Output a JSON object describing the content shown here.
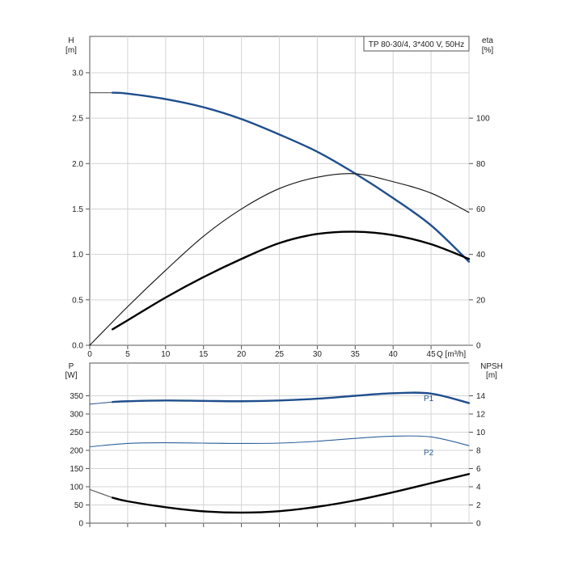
{
  "chart_data": [
    {
      "id": "head-efficiency",
      "type": "line",
      "legend_box": "TP 80-30/4, 3*400 V, 50Hz",
      "grid": true,
      "x_axis": {
        "label": "Q [m³/h]",
        "min": 0,
        "max": 50,
        "ticks": [
          0,
          5,
          10,
          15,
          20,
          25,
          30,
          35,
          40,
          45
        ],
        "tick_labels": [
          "0",
          "5",
          "10",
          "15",
          "20",
          "25",
          "30",
          "35",
          "40",
          "45"
        ]
      },
      "y_left": {
        "label_top": "H",
        "label_unit": "[m]",
        "min": 0,
        "max": 3.4,
        "ticks": [
          0,
          0.5,
          1.0,
          1.5,
          2.0,
          2.5,
          3.0
        ],
        "tick_labels": [
          "0.0",
          "0.5",
          "1.0",
          "1.5",
          "2.0",
          "2.5",
          "3.0"
        ]
      },
      "y_right": {
        "label_top": "eta",
        "label_unit": "[%]",
        "min": 0,
        "max": 136,
        "ticks": [
          0,
          20,
          40,
          60,
          80,
          100
        ],
        "tick_labels": [
          "0",
          "20",
          "40",
          "60",
          "80",
          "100"
        ]
      },
      "series": [
        {
          "key": "H_extension",
          "axis": "left",
          "color": "#555555",
          "style": "thin",
          "x": [
            0,
            3
          ],
          "y": [
            2.78,
            2.78
          ]
        },
        {
          "key": "H",
          "axis": "left",
          "color": "#1f4e8c",
          "style": "bold",
          "x": [
            3,
            5,
            10,
            15,
            20,
            25,
            30,
            35,
            40,
            45,
            50
          ],
          "y": [
            2.78,
            2.77,
            2.71,
            2.62,
            2.49,
            2.32,
            2.13,
            1.89,
            1.62,
            1.32,
            0.92
          ]
        },
        {
          "key": "eta_total",
          "axis": "right",
          "color": "#111111",
          "style": "thin",
          "x": [
            0,
            5,
            10,
            15,
            20,
            25,
            30,
            35,
            40,
            45,
            50
          ],
          "y": [
            0,
            17,
            33,
            48,
            60,
            69,
            74,
            75.5,
            72,
            67,
            58.5
          ]
        },
        {
          "key": "eta_hydraulic",
          "axis": "right",
          "color": "#000000",
          "style": "bold",
          "x": [
            3,
            5,
            10,
            15,
            20,
            25,
            30,
            35,
            40,
            45,
            50
          ],
          "y": [
            7,
            11,
            21,
            30,
            38,
            45,
            49,
            50,
            48.5,
            44.5,
            38
          ]
        }
      ]
    },
    {
      "id": "power-npsh",
      "type": "line",
      "grid": true,
      "x_axis": {
        "min": 0,
        "max": 50,
        "ticks": [
          0,
          5,
          10,
          15,
          20,
          25,
          30,
          35,
          40,
          45
        ]
      },
      "y_left": {
        "label_top": "P",
        "label_unit": "[W]",
        "min": 0,
        "max": 440,
        "ticks": [
          0,
          50,
          100,
          150,
          200,
          250,
          300,
          350
        ],
        "tick_labels": [
          "0",
          "50",
          "100",
          "150",
          "200",
          "250",
          "300",
          "350"
        ]
      },
      "y_right": {
        "label_top": "NPSH",
        "label_unit": "[m]",
        "min": 0,
        "max": 17.6,
        "ticks": [
          0,
          2,
          4,
          6,
          8,
          10,
          12,
          14
        ],
        "tick_labels": [
          "0",
          "2",
          "4",
          "6",
          "8",
          "10",
          "12",
          "14"
        ]
      },
      "series": [
        {
          "key": "P1_extension",
          "axis": "left",
          "color": "#3a5f8f",
          "style": "thin",
          "x": [
            0,
            3
          ],
          "y": [
            327,
            333
          ]
        },
        {
          "key": "P1",
          "axis": "left",
          "color": "#1f4e8c",
          "style": "bold",
          "label": "P1",
          "x": [
            3,
            5,
            10,
            15,
            20,
            25,
            30,
            35,
            40,
            45,
            50
          ],
          "y": [
            333,
            335,
            337,
            336,
            335,
            337,
            342,
            350,
            357,
            356,
            330
          ]
        },
        {
          "key": "P2",
          "axis": "left",
          "color": "#2d5f9a",
          "style": "thin",
          "label": "P2",
          "x": [
            0,
            5,
            10,
            15,
            20,
            25,
            30,
            35,
            40,
            45,
            50
          ],
          "y": [
            210,
            219,
            221,
            220,
            219,
            220,
            225,
            233,
            239,
            237,
            213
          ]
        },
        {
          "key": "NPSH_extension",
          "axis": "right",
          "color": "#555555",
          "style": "thin",
          "x": [
            0,
            3
          ],
          "y": [
            3.7,
            2.8
          ]
        },
        {
          "key": "NPSH",
          "axis": "right",
          "color": "#000000",
          "style": "bold",
          "x": [
            3,
            5,
            10,
            15,
            20,
            25,
            30,
            35,
            40,
            45,
            50
          ],
          "y": [
            2.8,
            2.4,
            1.75,
            1.3,
            1.16,
            1.32,
            1.8,
            2.5,
            3.4,
            4.4,
            5.4
          ]
        }
      ]
    }
  ]
}
